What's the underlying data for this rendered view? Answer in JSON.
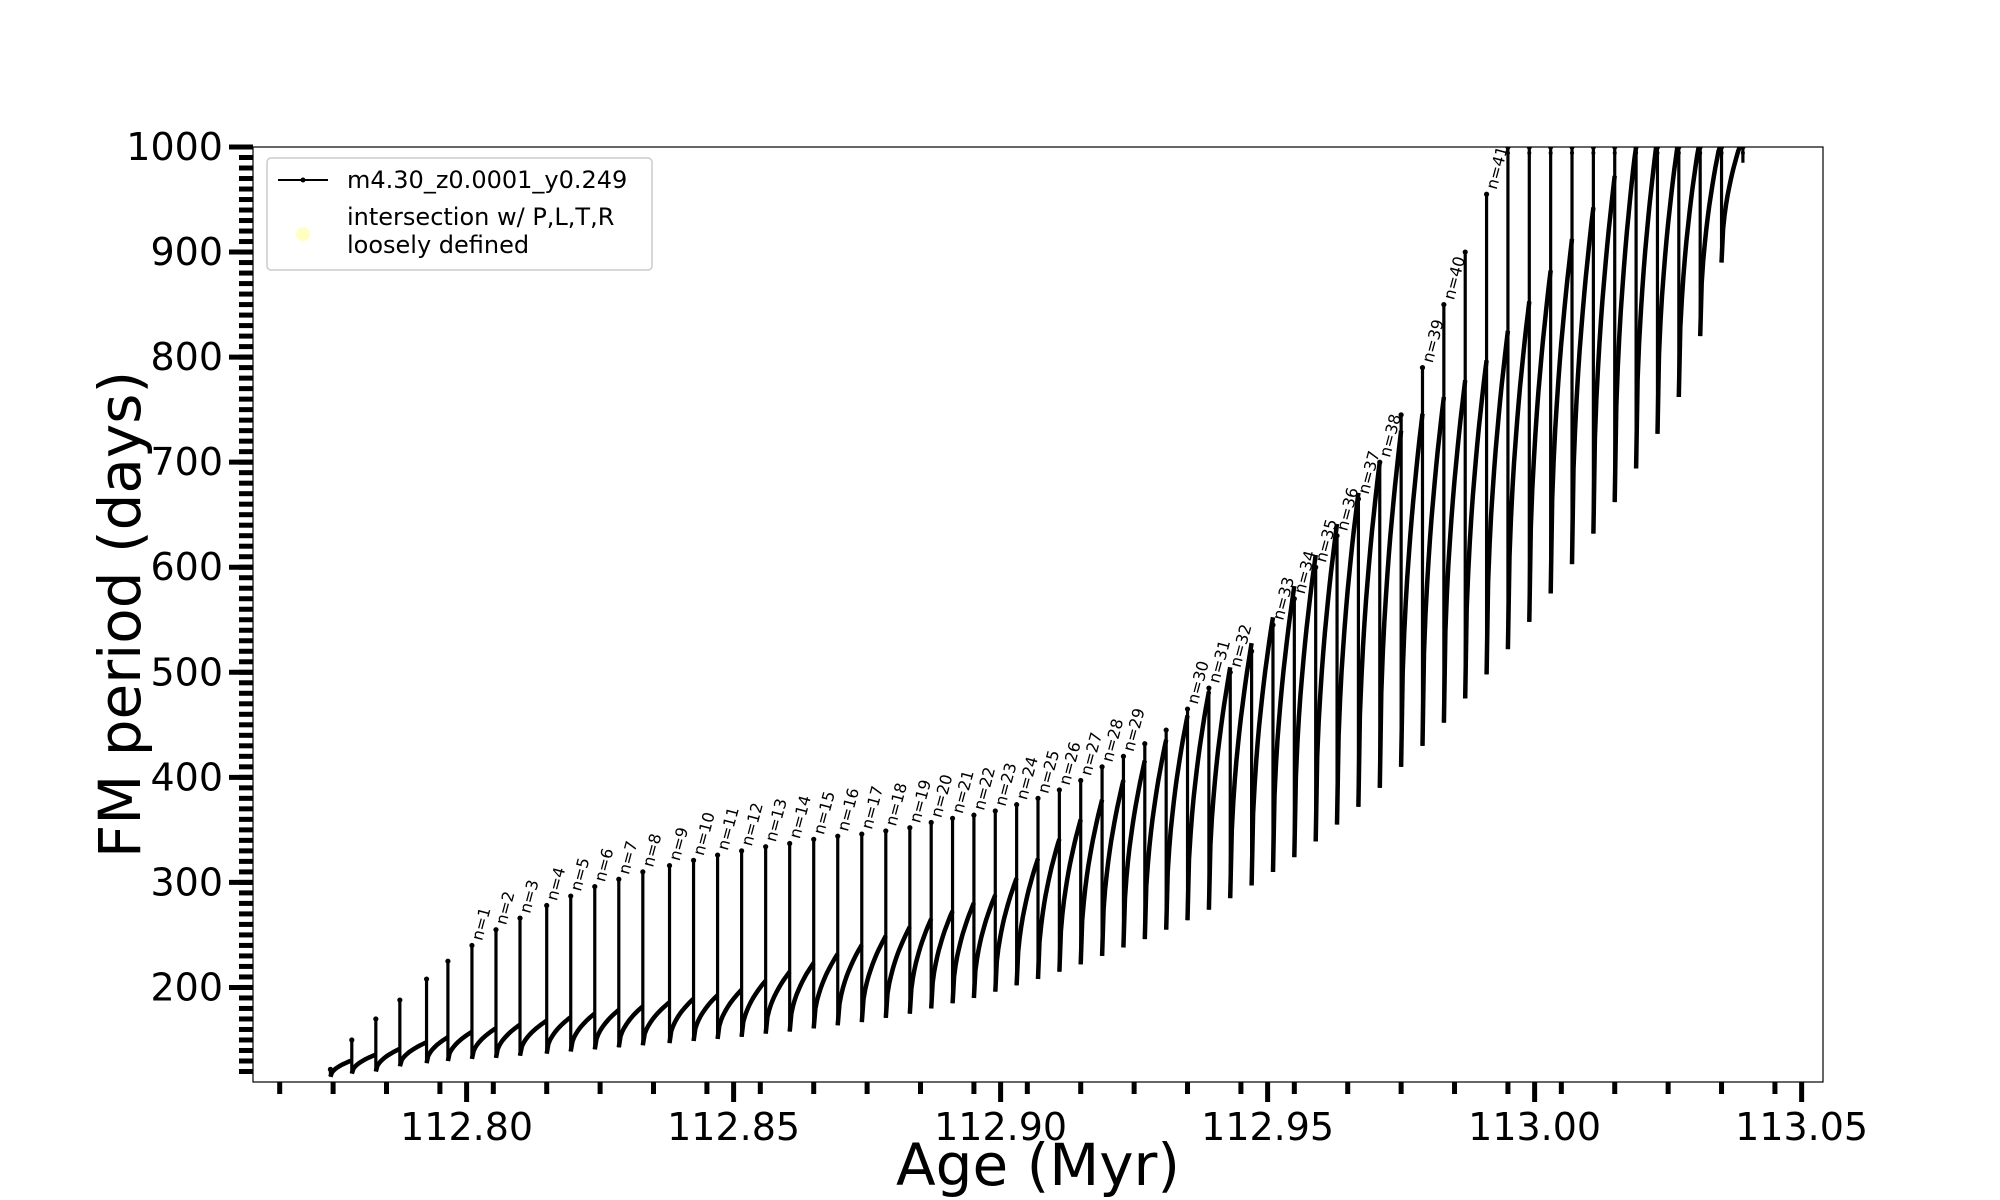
{
  "chart_data": {
    "type": "line",
    "xlabel": "Age (Myr)",
    "ylabel": "FM period (days)",
    "xlim": [
      112.76,
      113.054
    ],
    "ylim": [
      110,
      1000
    ],
    "x_ticks": [
      112.8,
      112.85,
      112.9,
      112.95,
      113.0,
      113.05
    ],
    "x_tick_labels": [
      "112.80",
      "112.85",
      "112.90",
      "112.95",
      "113.00",
      "113.05"
    ],
    "y_ticks": [
      200,
      300,
      400,
      500,
      600,
      700,
      800,
      900,
      1000
    ],
    "y_tick_labels": [
      "200",
      "300",
      "400",
      "500",
      "600",
      "700",
      "800",
      "900",
      "1000"
    ],
    "grid": false,
    "legend": {
      "position": "top-left",
      "entries": [
        {
          "label": "m4.30_z0.0001_y0.249",
          "marker": "line-dot",
          "color": "#000000"
        },
        {
          "label": "intersection w/ P,L,T,R loosely defined",
          "marker": "circle",
          "color": "#ffff99"
        }
      ]
    },
    "series": [
      {
        "name": "m4.30_z0.0001_y0.249",
        "color": "#000000",
        "baseline": {
          "x": [
            112.774,
            112.8,
            112.85,
            112.9,
            112.93,
            112.95,
            112.975,
            112.99,
            113.0,
            113.01,
            113.02,
            113.03
          ],
          "y": [
            125,
            157,
            195,
            290,
            430,
            545,
            730,
            790,
            860,
            935,
            1010,
            1010
          ]
        },
        "pulses": [
          {
            "x": 112.7745,
            "top": 122,
            "bottom": 115
          },
          {
            "x": 112.7785,
            "top": 150,
            "bottom": 118
          },
          {
            "x": 112.783,
            "top": 170,
            "bottom": 120
          },
          {
            "x": 112.7875,
            "top": 188,
            "bottom": 125
          },
          {
            "x": 112.7925,
            "top": 208,
            "bottom": 128
          },
          {
            "x": 112.7965,
            "top": 225,
            "bottom": 130
          },
          {
            "x": 112.801,
            "top": 240,
            "bottom": 132,
            "label": "n=1"
          },
          {
            "x": 112.8055,
            "top": 255,
            "bottom": 133,
            "label": "n=2"
          },
          {
            "x": 112.81,
            "top": 266,
            "bottom": 135,
            "label": "n=3"
          },
          {
            "x": 112.815,
            "top": 278,
            "bottom": 137,
            "label": "n=4"
          },
          {
            "x": 112.8195,
            "top": 287,
            "bottom": 139,
            "label": "n=5"
          },
          {
            "x": 112.824,
            "top": 296,
            "bottom": 141,
            "label": "n=6"
          },
          {
            "x": 112.8285,
            "top": 303,
            "bottom": 143,
            "label": "n=7"
          },
          {
            "x": 112.833,
            "top": 310,
            "bottom": 145,
            "label": "n=8"
          },
          {
            "x": 112.838,
            "top": 316,
            "bottom": 147,
            "label": "n=9"
          },
          {
            "x": 112.8425,
            "top": 321,
            "bottom": 149,
            "label": "n=10"
          },
          {
            "x": 112.847,
            "top": 326,
            "bottom": 151,
            "label": "n=11"
          },
          {
            "x": 112.8515,
            "top": 330,
            "bottom": 153,
            "label": "n=12"
          },
          {
            "x": 112.856,
            "top": 334,
            "bottom": 156,
            "label": "n=13"
          },
          {
            "x": 112.8605,
            "top": 337,
            "bottom": 158,
            "label": "n=14"
          },
          {
            "x": 112.865,
            "top": 341,
            "bottom": 161,
            "label": "n=15"
          },
          {
            "x": 112.8695,
            "top": 344,
            "bottom": 164,
            "label": "n=16"
          },
          {
            "x": 112.874,
            "top": 346,
            "bottom": 167,
            "label": "n=17"
          },
          {
            "x": 112.8785,
            "top": 349,
            "bottom": 171,
            "label": "n=18"
          },
          {
            "x": 112.883,
            "top": 352,
            "bottom": 175,
            "label": "n=19"
          },
          {
            "x": 112.887,
            "top": 357,
            "bottom": 180,
            "label": "n=20"
          },
          {
            "x": 112.891,
            "top": 361,
            "bottom": 185,
            "label": "n=21"
          },
          {
            "x": 112.895,
            "top": 364,
            "bottom": 190,
            "label": "n=22"
          },
          {
            "x": 112.899,
            "top": 368,
            "bottom": 196,
            "label": "n=23"
          },
          {
            "x": 112.903,
            "top": 374,
            "bottom": 202,
            "label": "n=24"
          },
          {
            "x": 112.907,
            "top": 380,
            "bottom": 208,
            "label": "n=25"
          },
          {
            "x": 112.911,
            "top": 388,
            "bottom": 215,
            "label": "n=26"
          },
          {
            "x": 112.915,
            "top": 397,
            "bottom": 222,
            "label": "n=27"
          },
          {
            "x": 112.919,
            "top": 410,
            "bottom": 230,
            "label": "n=28"
          },
          {
            "x": 112.923,
            "top": 420,
            "bottom": 238,
            "label": "n=29"
          },
          {
            "x": 112.927,
            "top": 432,
            "bottom": 246
          },
          {
            "x": 112.931,
            "top": 445,
            "bottom": 255
          },
          {
            "x": 112.935,
            "top": 465,
            "bottom": 264,
            "label": "n=30"
          },
          {
            "x": 112.939,
            "top": 485,
            "bottom": 274,
            "label": "n=31"
          },
          {
            "x": 112.943,
            "top": 500,
            "bottom": 285,
            "label": "n=32"
          },
          {
            "x": 112.947,
            "top": 520,
            "bottom": 297
          },
          {
            "x": 112.951,
            "top": 545,
            "bottom": 310,
            "label": "n=33"
          },
          {
            "x": 112.955,
            "top": 570,
            "bottom": 324,
            "label": "n=34"
          },
          {
            "x": 112.959,
            "top": 600,
            "bottom": 339,
            "label": "n=35"
          },
          {
            "x": 112.963,
            "top": 630,
            "bottom": 355,
            "label": "n=36"
          },
          {
            "x": 112.967,
            "top": 665,
            "bottom": 372,
            "label": "n=37"
          },
          {
            "x": 112.971,
            "top": 700,
            "bottom": 390,
            "label": "n=38"
          },
          {
            "x": 112.975,
            "top": 745,
            "bottom": 410
          },
          {
            "x": 112.979,
            "top": 790,
            "bottom": 430,
            "label": "n=39"
          },
          {
            "x": 112.983,
            "top": 850,
            "bottom": 452,
            "label": "n=40"
          },
          {
            "x": 112.987,
            "top": 900,
            "bottom": 475
          },
          {
            "x": 112.991,
            "top": 955,
            "bottom": 498,
            "label": "n=41"
          },
          {
            "x": 112.995,
            "top": 1000,
            "bottom": 522
          },
          {
            "x": 112.999,
            "top": 1000,
            "bottom": 548
          },
          {
            "x": 113.003,
            "top": 1000,
            "bottom": 575
          },
          {
            "x": 113.007,
            "top": 1000,
            "bottom": 603
          },
          {
            "x": 113.011,
            "top": 1000,
            "bottom": 632
          },
          {
            "x": 113.015,
            "top": 1000,
            "bottom": 662
          },
          {
            "x": 113.019,
            "top": 1000,
            "bottom": 694
          },
          {
            "x": 113.023,
            "top": 1000,
            "bottom": 727
          },
          {
            "x": 113.027,
            "top": 1000,
            "bottom": 762
          },
          {
            "x": 113.031,
            "top": 1000,
            "bottom": 820
          },
          {
            "x": 113.035,
            "top": 1000,
            "bottom": 890
          },
          {
            "x": 113.039,
            "top": 1000,
            "bottom": 985
          }
        ]
      }
    ]
  }
}
